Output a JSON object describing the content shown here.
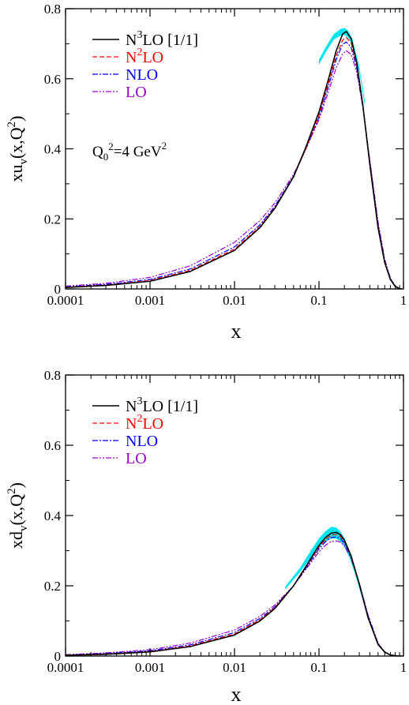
{
  "chart_data": [
    {
      "type": "line",
      "panel": "top",
      "xscale": "log",
      "xlim": [
        0.0001,
        1
      ],
      "ylim": [
        0,
        0.8
      ],
      "xticks": [
        {
          "v": 0.0001,
          "label": "0.0001"
        },
        {
          "v": 0.001,
          "label": "0.001"
        },
        {
          "v": 0.01,
          "label": "0.01"
        },
        {
          "v": 0.1,
          "label": "0.1"
        },
        {
          "v": 1,
          "label": "1"
        }
      ],
      "yticks": [
        {
          "v": 0,
          "label": "0"
        },
        {
          "v": 0.2,
          "label": "0.2"
        },
        {
          "v": 0.4,
          "label": "0.4"
        },
        {
          "v": 0.6,
          "label": "0.6"
        },
        {
          "v": 0.8,
          "label": "0.8"
        }
      ],
      "xlabel": "x",
      "ylabel": {
        "pre": "xu",
        "sub": "v",
        "mid": "(x,Q",
        "sup": "2",
        "post": ")"
      },
      "annotation": {
        "pre": "Q",
        "sub": "0",
        "sup": "2",
        "post": "=4 GeV",
        "sup2": "2"
      },
      "legend_position": "top-left",
      "band": {
        "color": "#00e5ee",
        "x": [
          0.1,
          0.12,
          0.15,
          0.18,
          0.2,
          0.22,
          0.25,
          0.3,
          0.35
        ],
        "lower": [
          0.64,
          0.675,
          0.712,
          0.723,
          0.725,
          0.718,
          0.695,
          0.62,
          0.52
        ],
        "upper": [
          0.655,
          0.69,
          0.728,
          0.742,
          0.745,
          0.738,
          0.712,
          0.635,
          0.535
        ]
      },
      "series": [
        {
          "name": "N3LO [1/1]",
          "legend": {
            "main": "N",
            "sup": "3",
            "rest": "LO  [1/1]"
          },
          "color": "#000000",
          "dash": "",
          "width": 1.6,
          "x": [
            0.0001,
            0.0003,
            0.001,
            0.003,
            0.01,
            0.02,
            0.03,
            0.05,
            0.07,
            0.1,
            0.13,
            0.16,
            0.19,
            0.21,
            0.24,
            0.28,
            0.33,
            0.4,
            0.5,
            0.6,
            0.7,
            0.8,
            0.9,
            0.95
          ],
          "y": [
            0.004,
            0.01,
            0.022,
            0.05,
            0.11,
            0.175,
            0.23,
            0.32,
            0.405,
            0.505,
            0.6,
            0.68,
            0.727,
            0.735,
            0.715,
            0.645,
            0.525,
            0.355,
            0.175,
            0.075,
            0.027,
            0.007,
            0.001,
            0.0
          ]
        },
        {
          "name": "N2LO",
          "legend": {
            "main": "N",
            "sup": "2",
            "rest": "LO"
          },
          "color": "#ff0000",
          "dash": "6,3",
          "width": 1.2,
          "x": [
            0.0001,
            0.0003,
            0.001,
            0.003,
            0.01,
            0.02,
            0.03,
            0.05,
            0.07,
            0.1,
            0.13,
            0.16,
            0.19,
            0.21,
            0.24,
            0.28,
            0.33,
            0.4,
            0.5,
            0.6,
            0.7,
            0.8,
            0.9,
            0.95
          ],
          "y": [
            0.005,
            0.011,
            0.024,
            0.053,
            0.114,
            0.178,
            0.232,
            0.32,
            0.4,
            0.495,
            0.588,
            0.665,
            0.71,
            0.718,
            0.702,
            0.637,
            0.525,
            0.36,
            0.18,
            0.078,
            0.028,
            0.007,
            0.001,
            0.0
          ]
        },
        {
          "name": "NLO",
          "legend": {
            "main": "NLO",
            "sup": "",
            "rest": ""
          },
          "color": "#0000ff",
          "dash": "7,2,2,2",
          "width": 1.2,
          "x": [
            0.0001,
            0.0003,
            0.001,
            0.003,
            0.01,
            0.02,
            0.03,
            0.05,
            0.07,
            0.1,
            0.13,
            0.16,
            0.19,
            0.21,
            0.24,
            0.28,
            0.33,
            0.4,
            0.5,
            0.6,
            0.7,
            0.8,
            0.9,
            0.95
          ],
          "y": [
            0.006,
            0.013,
            0.027,
            0.057,
            0.12,
            0.183,
            0.236,
            0.322,
            0.4,
            0.49,
            0.58,
            0.655,
            0.698,
            0.705,
            0.69,
            0.63,
            0.523,
            0.362,
            0.183,
            0.08,
            0.029,
            0.008,
            0.001,
            0.0
          ]
        },
        {
          "name": "LO",
          "legend": {
            "main": "LO",
            "sup": "",
            "rest": ""
          },
          "color": "#9900cc",
          "dash": "7,2,2,2,2,2",
          "width": 1.2,
          "x": [
            0.0001,
            0.0003,
            0.001,
            0.003,
            0.01,
            0.02,
            0.03,
            0.05,
            0.07,
            0.1,
            0.13,
            0.16,
            0.19,
            0.21,
            0.24,
            0.28,
            0.33,
            0.4,
            0.5,
            0.6,
            0.7,
            0.8,
            0.9,
            0.95
          ],
          "y": [
            0.008,
            0.016,
            0.033,
            0.066,
            0.133,
            0.195,
            0.245,
            0.327,
            0.4,
            0.483,
            0.565,
            0.632,
            0.67,
            0.68,
            0.67,
            0.618,
            0.52,
            0.368,
            0.192,
            0.085,
            0.031,
            0.008,
            0.001,
            0.0
          ]
        }
      ]
    },
    {
      "type": "line",
      "panel": "bottom",
      "xscale": "log",
      "xlim": [
        0.0001,
        1
      ],
      "ylim": [
        0,
        0.8
      ],
      "xticks": [
        {
          "v": 0.0001,
          "label": "0.0001"
        },
        {
          "v": 0.001,
          "label": "0.001"
        },
        {
          "v": 0.01,
          "label": "0.01"
        },
        {
          "v": 0.1,
          "label": "0.1"
        },
        {
          "v": 1,
          "label": "1"
        }
      ],
      "yticks": [
        {
          "v": 0,
          "label": "0"
        },
        {
          "v": 0.2,
          "label": "0.2"
        },
        {
          "v": 0.4,
          "label": "0.4"
        },
        {
          "v": 0.6,
          "label": "0.6"
        },
        {
          "v": 0.8,
          "label": "0.8"
        }
      ],
      "xlabel": "x",
      "ylabel": {
        "pre": "xd",
        "sub": "v",
        "mid": "(x,Q",
        "sup": "2",
        "post": ")"
      },
      "legend_position": "top-left",
      "band": {
        "color": "#00e5ee",
        "x": [
          0.04,
          0.06,
          0.08,
          0.1,
          0.12,
          0.14,
          0.16,
          0.18,
          0.2,
          0.23,
          0.27,
          0.32,
          0.38
        ],
        "lower": [
          0.19,
          0.24,
          0.28,
          0.31,
          0.327,
          0.335,
          0.334,
          0.325,
          0.31,
          0.28,
          0.23,
          0.17,
          0.11
        ],
        "upper": [
          0.198,
          0.252,
          0.3,
          0.335,
          0.356,
          0.368,
          0.366,
          0.354,
          0.336,
          0.3,
          0.245,
          0.18,
          0.118
        ]
      },
      "series": [
        {
          "name": "N3LO [1/1]",
          "legend": {
            "main": "N",
            "sup": "3",
            "rest": "LO  [1/1]"
          },
          "color": "#000000",
          "dash": "",
          "width": 1.6,
          "x": [
            0.0001,
            0.0003,
            0.001,
            0.003,
            0.01,
            0.02,
            0.03,
            0.05,
            0.07,
            0.1,
            0.12,
            0.14,
            0.16,
            0.18,
            0.2,
            0.24,
            0.3,
            0.38,
            0.5,
            0.6,
            0.7,
            0.8,
            0.9,
            0.95
          ],
          "y": [
            0.002,
            0.005,
            0.012,
            0.027,
            0.06,
            0.1,
            0.135,
            0.2,
            0.255,
            0.315,
            0.338,
            0.35,
            0.352,
            0.345,
            0.33,
            0.285,
            0.205,
            0.11,
            0.033,
            0.011,
            0.003,
            0.001,
            0.0,
            0.0
          ]
        },
        {
          "name": "N2LO",
          "legend": {
            "main": "N",
            "sup": "2",
            "rest": "LO"
          },
          "color": "#ff0000",
          "dash": "6,3",
          "width": 1.2,
          "x": [
            0.0001,
            0.0003,
            0.001,
            0.003,
            0.01,
            0.02,
            0.03,
            0.05,
            0.07,
            0.1,
            0.12,
            0.14,
            0.16,
            0.18,
            0.2,
            0.24,
            0.3,
            0.38,
            0.5,
            0.6,
            0.7,
            0.8,
            0.9,
            0.95
          ],
          "y": [
            0.003,
            0.006,
            0.013,
            0.029,
            0.063,
            0.103,
            0.138,
            0.2,
            0.253,
            0.31,
            0.332,
            0.344,
            0.346,
            0.34,
            0.326,
            0.283,
            0.205,
            0.112,
            0.034,
            0.011,
            0.003,
            0.001,
            0.0,
            0.0
          ]
        },
        {
          "name": "NLO",
          "legend": {
            "main": "NLO",
            "sup": "",
            "rest": ""
          },
          "color": "#0000ff",
          "dash": "7,2,2,2",
          "width": 1.2,
          "x": [
            0.0001,
            0.0003,
            0.001,
            0.003,
            0.01,
            0.02,
            0.03,
            0.05,
            0.07,
            0.1,
            0.12,
            0.14,
            0.16,
            0.18,
            0.2,
            0.24,
            0.3,
            0.38,
            0.5,
            0.6,
            0.7,
            0.8,
            0.9,
            0.95
          ],
          "y": [
            0.003,
            0.007,
            0.015,
            0.032,
            0.067,
            0.107,
            0.14,
            0.2,
            0.25,
            0.305,
            0.326,
            0.337,
            0.339,
            0.334,
            0.322,
            0.282,
            0.207,
            0.115,
            0.035,
            0.012,
            0.003,
            0.001,
            0.0,
            0.0
          ]
        },
        {
          "name": "LO",
          "legend": {
            "main": "LO",
            "sup": "",
            "rest": ""
          },
          "color": "#9900cc",
          "dash": "7,2,2,2,2,2",
          "width": 1.2,
          "x": [
            0.0001,
            0.0003,
            0.001,
            0.003,
            0.01,
            0.02,
            0.03,
            0.05,
            0.07,
            0.1,
            0.12,
            0.14,
            0.16,
            0.18,
            0.2,
            0.24,
            0.3,
            0.38,
            0.5,
            0.6,
            0.7,
            0.8,
            0.9,
            0.95
          ],
          "y": [
            0.004,
            0.009,
            0.018,
            0.037,
            0.074,
            0.113,
            0.145,
            0.2,
            0.247,
            0.297,
            0.316,
            0.326,
            0.328,
            0.324,
            0.314,
            0.278,
            0.208,
            0.118,
            0.037,
            0.012,
            0.003,
            0.001,
            0.0,
            0.0
          ]
        }
      ]
    }
  ]
}
